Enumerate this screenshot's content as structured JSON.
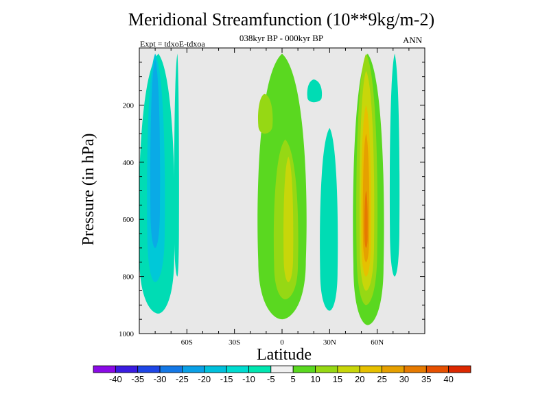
{
  "chart_data": {
    "type": "heatmap",
    "title": "Meridional Streamfunction (10**9kg/m-2)",
    "subtitle": "038kyr BP - 000kyr BP",
    "left_label": "Expt = tdxoE-tdxoa",
    "right_label": "ANN",
    "xlabel": "Latitude",
    "ylabel": "Pressure (in hPa)",
    "x_range": [
      -90,
      90
    ],
    "y_range": [
      0,
      1000
    ],
    "y_inverted": true,
    "x_ticks": [
      {
        "value": -60,
        "label": "60S"
      },
      {
        "value": -30,
        "label": "30S"
      },
      {
        "value": 0,
        "label": "0"
      },
      {
        "value": 30,
        "label": "30N"
      },
      {
        "value": 60,
        "label": "60N"
      }
    ],
    "y_ticks": [
      {
        "value": 200,
        "label": "200"
      },
      {
        "value": 400,
        "label": "400"
      },
      {
        "value": 600,
        "label": "600"
      },
      {
        "value": 800,
        "label": "800"
      },
      {
        "value": 1000,
        "label": "1000"
      }
    ],
    "background_color": "#e8e8e8",
    "colorbar": {
      "labels": [
        "-40",
        "-35",
        "-30",
        "-25",
        "-20",
        "-15",
        "-10",
        "-5",
        "5",
        "10",
        "15",
        "20",
        "25",
        "30",
        "35",
        "40"
      ],
      "colors": [
        "#8a0ae6",
        "#3a1ce0",
        "#1e46e6",
        "#1478e6",
        "#0aa0e6",
        "#00c0dc",
        "#00dcd0",
        "#00e6b0",
        "#f0f0f0",
        "#5ad820",
        "#96d814",
        "#c8d60a",
        "#e6c000",
        "#e6a000",
        "#e67a00",
        "#e65000",
        "#dc2800"
      ]
    },
    "regions": [
      {
        "name": "sh-cell-outer",
        "level": "-10",
        "color": "#00dcb4",
        "lat_min": -90,
        "lat_max": -68,
        "lat_peak": -78,
        "p_top": 20,
        "p_bottom": 930
      },
      {
        "name": "sh-cell-mid",
        "level": "-15",
        "color": "#00c8d8",
        "lat_min": -85,
        "lat_max": -74,
        "lat_peak": -80,
        "p_top": 20,
        "p_bottom": 820
      },
      {
        "name": "sh-cell-core",
        "level": "-20",
        "color": "#0aaae6",
        "lat_min": -83,
        "lat_max": -77,
        "lat_peak": -80,
        "p_top": 40,
        "p_bottom": 700
      },
      {
        "name": "sh-narrow-band",
        "level": "-10",
        "color": "#00dcb4",
        "lat_min": -68,
        "lat_max": -65,
        "lat_peak": -66,
        "p_top": 20,
        "p_bottom": 800
      },
      {
        "name": "equatorial-positive",
        "level": "5",
        "color": "#5ad820",
        "lat_min": -15,
        "lat_max": 15,
        "lat_peak": 0,
        "p_top": 20,
        "p_bottom": 950
      },
      {
        "name": "equatorial-10-upper",
        "level": "10",
        "color": "#96d814",
        "lat_min": -15,
        "lat_max": -6,
        "lat_peak": -11,
        "p_top": 160,
        "p_bottom": 300
      },
      {
        "name": "equatorial-10-lower",
        "level": "10",
        "color": "#96d814",
        "lat_min": -5,
        "lat_max": 10,
        "lat_peak": 2,
        "p_top": 320,
        "p_bottom": 880
      },
      {
        "name": "equatorial-15-core",
        "level": "15",
        "color": "#c8d60a",
        "lat_min": 1,
        "lat_max": 7,
        "lat_peak": 4,
        "p_top": 380,
        "p_bottom": 820
      },
      {
        "name": "tropical-negative-upper",
        "level": "-10",
        "color": "#00dcb4",
        "lat_min": 16,
        "lat_max": 25,
        "lat_peak": 20,
        "p_top": 110,
        "p_bottom": 190
      },
      {
        "name": "tropical-negative-lower",
        "level": "-10",
        "color": "#00dcb4",
        "lat_min": 24,
        "lat_max": 35,
        "lat_peak": 30,
        "p_top": 280,
        "p_bottom": 920
      },
      {
        "name": "nh-positive-outer",
        "level": "5",
        "color": "#5ad820",
        "lat_min": 45,
        "lat_max": 64,
        "lat_peak": 54,
        "p_top": 20,
        "p_bottom": 970
      },
      {
        "name": "nh-positive-10",
        "level": "10",
        "color": "#96d814",
        "lat_min": 47,
        "lat_max": 60,
        "lat_peak": 53,
        "p_top": 20,
        "p_bottom": 900
      },
      {
        "name": "nh-positive-15",
        "level": "15",
        "color": "#c8d60a",
        "lat_min": 49,
        "lat_max": 58,
        "lat_peak": 53,
        "p_top": 80,
        "p_bottom": 850
      },
      {
        "name": "nh-positive-20",
        "level": "20",
        "color": "#e6c000",
        "lat_min": 50,
        "lat_max": 56,
        "lat_peak": 53,
        "p_top": 200,
        "p_bottom": 800
      },
      {
        "name": "nh-positive-25",
        "level": "25",
        "color": "#e6a000",
        "lat_min": 51,
        "lat_max": 55,
        "lat_peak": 53,
        "p_top": 300,
        "p_bottom": 750
      },
      {
        "name": "nh-positive-30",
        "level": "30",
        "color": "#e67a00",
        "lat_min": 52,
        "lat_max": 54,
        "lat_peak": 53,
        "p_top": 500,
        "p_bottom": 700
      },
      {
        "name": "nh-negative-band",
        "level": "-10",
        "color": "#00dcb4",
        "lat_min": 68,
        "lat_max": 74,
        "lat_peak": 71,
        "p_top": 20,
        "p_bottom": 800
      }
    ]
  }
}
